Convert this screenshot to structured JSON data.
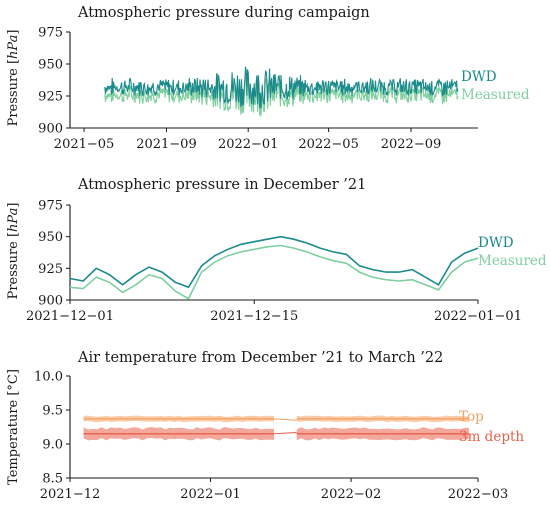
{
  "colors": {
    "dwd": "#1a8a8a",
    "measured": "#7fcf9f",
    "top": "#f4a263",
    "depth": "#e8604a"
  },
  "chart_data": [
    {
      "type": "line",
      "title": "Atmospheric pressure during campaign",
      "ylabel": "Pressure [hPa]",
      "ylim": [
        900,
        975
      ],
      "yticks": [
        "900",
        "925",
        "950",
        "975"
      ],
      "xlim": [
        "2021-04-10",
        "2022-12-10"
      ],
      "xticks": [
        {
          "date": "2021-05-01",
          "label": "2021−05"
        },
        {
          "date": "2021-09-01",
          "label": "2021−09"
        },
        {
          "date": "2022-01-01",
          "label": "2022−01"
        },
        {
          "date": "2022-05-01",
          "label": "2022−05"
        },
        {
          "date": "2022-09-01",
          "label": "2022−09"
        }
      ],
      "x_range": [
        "2021-06-01",
        "2022-11-10"
      ],
      "series": [
        {
          "name": "DWD",
          "mean": 932,
          "spread": 6,
          "winter_spread": 14,
          "offset": 0
        },
        {
          "name": "Measured",
          "mean": 926,
          "spread": 6,
          "winter_spread": 14,
          "offset": -6
        }
      ],
      "legend": "right"
    },
    {
      "type": "line",
      "title": "Atmospheric pressure in December ’21",
      "ylabel": "Pressure [hPa]",
      "ylim": [
        900,
        975
      ],
      "yticks": [
        "900",
        "925",
        "950",
        "975"
      ],
      "xlim": [
        "2021-12-01",
        "2022-01-01"
      ],
      "xticks": [
        {
          "date": "2021-12-01",
          "label": "2021−12−01"
        },
        {
          "date": "2021-12-15",
          "label": "2021−12−15"
        },
        {
          "date": "2022-01-01",
          "label": "2022−01−01"
        }
      ],
      "series": [
        {
          "name": "DWD",
          "x": [
            "2021-12-01",
            "2021-12-02",
            "2021-12-03",
            "2021-12-04",
            "2021-12-05",
            "2021-12-06",
            "2021-12-07",
            "2021-12-08",
            "2021-12-09",
            "2021-12-10",
            "2021-12-11",
            "2021-12-12",
            "2021-12-13",
            "2021-12-14",
            "2021-12-15",
            "2021-12-16",
            "2021-12-17",
            "2021-12-18",
            "2021-12-19",
            "2021-12-20",
            "2021-12-21",
            "2021-12-22",
            "2021-12-23",
            "2021-12-24",
            "2021-12-25",
            "2021-12-26",
            "2021-12-27",
            "2021-12-28",
            "2021-12-29",
            "2021-12-30",
            "2021-12-31",
            "2022-01-01"
          ],
          "y": [
            917,
            915,
            925,
            920,
            912,
            920,
            926,
            922,
            914,
            910,
            927,
            935,
            940,
            944,
            946,
            948,
            950,
            948,
            945,
            941,
            938,
            936,
            927,
            924,
            922,
            922,
            924,
            918,
            912,
            930,
            937,
            941
          ]
        },
        {
          "name": "Measured",
          "x": [
            "2021-12-01",
            "2021-12-02",
            "2021-12-03",
            "2021-12-04",
            "2021-12-05",
            "2021-12-06",
            "2021-12-07",
            "2021-12-08",
            "2021-12-09",
            "2021-12-10",
            "2021-12-11",
            "2021-12-12",
            "2021-12-13",
            "2021-12-14",
            "2021-12-15",
            "2021-12-16",
            "2021-12-17",
            "2021-12-18",
            "2021-12-19",
            "2021-12-20",
            "2021-12-21",
            "2021-12-22",
            "2021-12-23",
            "2021-12-24",
            "2021-12-25",
            "2021-12-26",
            "2021-12-27",
            "2021-12-28",
            "2021-12-29",
            "2021-12-30",
            "2021-12-31",
            "2022-01-01"
          ],
          "y": [
            910,
            909,
            918,
            914,
            906,
            912,
            920,
            917,
            907,
            901,
            922,
            930,
            935,
            938,
            940,
            942,
            943,
            941,
            938,
            934,
            931,
            929,
            922,
            918,
            916,
            915,
            916,
            912,
            908,
            922,
            930,
            933
          ]
        }
      ],
      "legend": "right"
    },
    {
      "type": "area",
      "title": "Air temperature from December ’21 to March ’22",
      "ylabel": "Temperature [°C]",
      "ylim": [
        8.5,
        10.0
      ],
      "yticks": [
        "8.5",
        "9.0",
        "9.5",
        "10.0"
      ],
      "xlim": [
        "2021-12-01",
        "2022-03-01"
      ],
      "xticks": [
        {
          "date": "2021-12-01",
          "label": "2021−12"
        },
        {
          "date": "2022-01-01",
          "label": "2022−01"
        },
        {
          "date": "2022-02-01",
          "label": "2022−02"
        },
        {
          "date": "2022-03-01",
          "label": "2022−03"
        }
      ],
      "gap": [
        "2022-01-15",
        "2022-01-20"
      ],
      "series": [
        {
          "name": "Top",
          "start": "2021-12-04",
          "end": "2022-02-27",
          "mean": 9.37,
          "band": 0.04
        },
        {
          "name": "3m depth",
          "start": "2021-12-04",
          "end": "2022-02-27",
          "mean": 9.15,
          "band": 0.08
        }
      ],
      "legend": "right"
    }
  ]
}
